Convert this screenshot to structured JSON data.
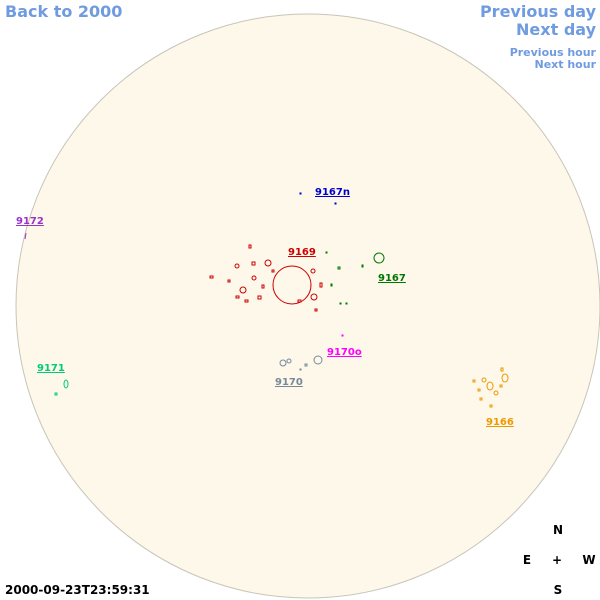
{
  "navigation": {
    "back": "Back to 2000",
    "previous_day": "Previous day",
    "next_day": "Next day",
    "previous_hour": "Previous hour",
    "next_hour": "Next hour"
  },
  "regions": [
    {
      "label": "9167n"
    },
    {
      "label": "9172"
    },
    {
      "label": "9169"
    },
    {
      "label": "9167"
    },
    {
      "label": "9171"
    },
    {
      "label": "9170o"
    },
    {
      "label": "9170"
    },
    {
      "label": "9166"
    }
  ],
  "compass": {
    "north": "N",
    "east": "E",
    "center": "+",
    "west": "W",
    "south": "S"
  },
  "timestamp": "2000-09-23T23:59:31"
}
